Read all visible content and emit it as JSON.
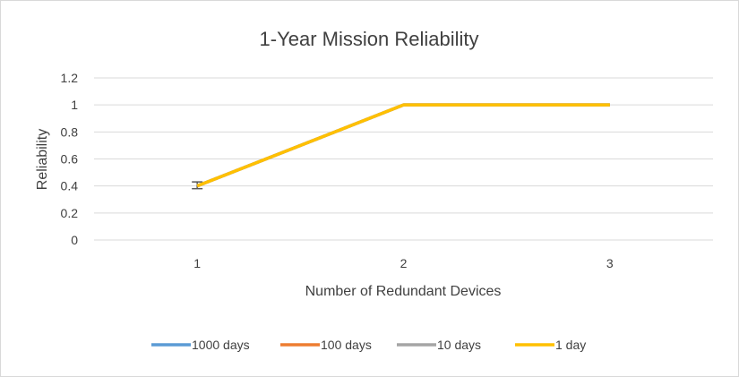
{
  "chart_data": {
    "type": "line",
    "title": "1-Year Mission Reliability",
    "xlabel": "Number of Redundant Devices",
    "ylabel": "Reliability",
    "categories": [
      "1",
      "2",
      "3"
    ],
    "ylim": [
      0,
      1.2
    ],
    "yticks": [
      "0",
      "0.2",
      "0.4",
      "0.6",
      "0.8",
      "1",
      "1.2"
    ],
    "grid": true,
    "legend_position": "bottom",
    "series": [
      {
        "name": "1000 days",
        "color": "#5b9bd5",
        "values": [
          0.4,
          1,
          1
        ]
      },
      {
        "name": "100 days",
        "color": "#ed7d31",
        "values": [
          0.4,
          1,
          1
        ]
      },
      {
        "name": "10 days",
        "color": "#a5a5a5",
        "values": [
          0.4,
          1,
          1
        ]
      },
      {
        "name": "1 day",
        "color": "#ffc000",
        "values": [
          0.4,
          1,
          1
        ]
      }
    ],
    "error_bars": [
      {
        "category": "1",
        "low": 0.38,
        "high": 0.43
      }
    ]
  }
}
